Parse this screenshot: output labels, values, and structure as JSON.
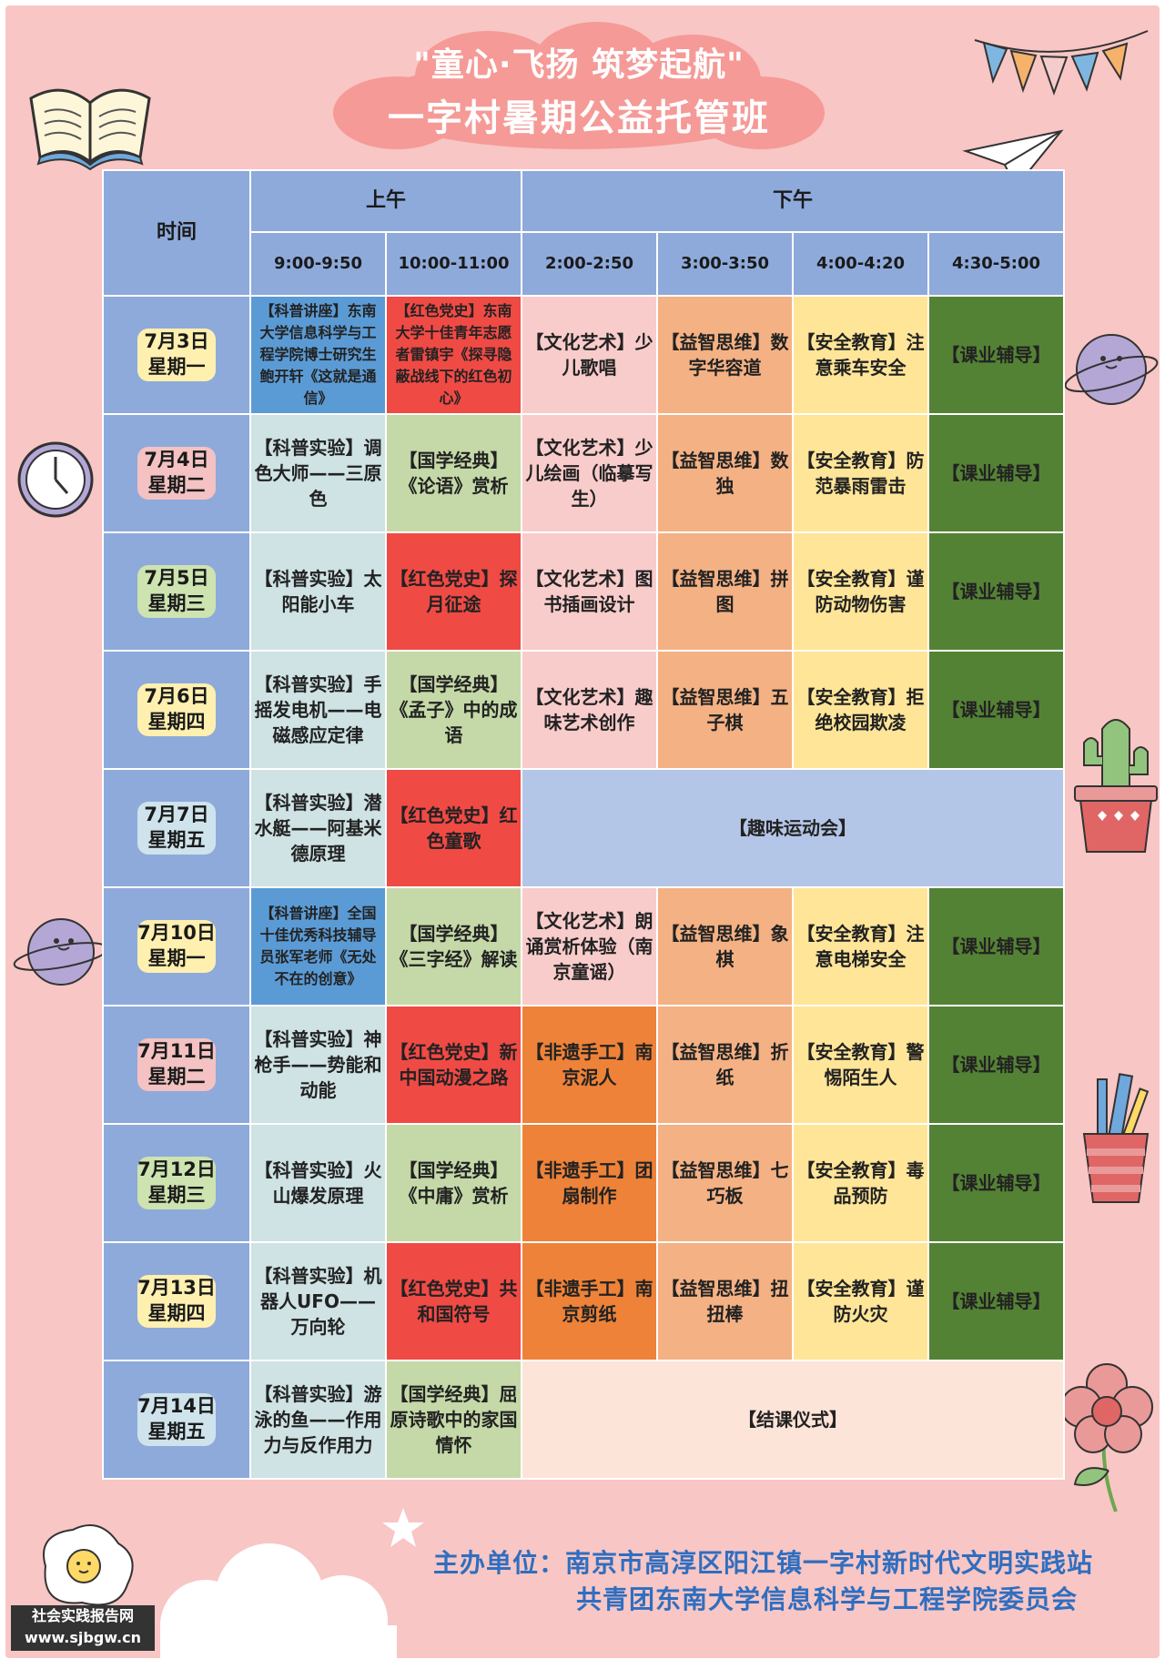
{
  "title": {
    "line1": "\"童心·飞扬 筑梦起航\"",
    "line2": "一字村暑期公益托管班"
  },
  "header": {
    "time_label": "时间",
    "morning": "上午",
    "afternoon": "下午",
    "slots": [
      "9:00-9:50",
      "10:00-11:00",
      "2:00-2:50",
      "3:00-3:50",
      "4:00-4:20",
      "4:30-5:00"
    ]
  },
  "days": [
    {
      "date": "7月3日",
      "weekday": "星期一",
      "s1": "【科普讲座】东南大学信息科学与工程学院博士研究生鲍开轩《这就是通信》",
      "s2": "【红色党史】东南大学十佳青年志愿者雷镇宇《探寻隐蔽战线下的红色初心》",
      "s3": "【文化艺术】少儿歌唱",
      "s4": "【益智思维】数字华容道",
      "s5": "【安全教育】注意乘车安全",
      "s6": "【课业辅导】"
    },
    {
      "date": "7月4日",
      "weekday": "星期二",
      "s1": "【科普实验】调色大师——三原色",
      "s2": "【国学经典】《论语》赏析",
      "s3": "【文化艺术】少儿绘画（临摹写生）",
      "s4": "【益智思维】数独",
      "s5": "【安全教育】防范暴雨雷击",
      "s6": "【课业辅导】"
    },
    {
      "date": "7月5日",
      "weekday": "星期三",
      "s1": "【科普实验】太阳能小车",
      "s2": "【红色党史】探月征途",
      "s3": "【文化艺术】图书插画设计",
      "s4": "【益智思维】拼图",
      "s5": "【安全教育】谨防动物伤害",
      "s6": "【课业辅导】"
    },
    {
      "date": "7月6日",
      "weekday": "星期四",
      "s1": "【科普实验】手摇发电机——电磁感应定律",
      "s2": "【国学经典】《孟子》中的成语",
      "s3": "【文化艺术】趣味艺术创作",
      "s4": "【益智思维】五子棋",
      "s5": "【安全教育】拒绝校园欺凌",
      "s6": "【课业辅导】"
    },
    {
      "date": "7月7日",
      "weekday": "星期五",
      "s1": "【科普实验】潜水艇——阿基米德原理",
      "s2": "【红色党史】红色童歌",
      "afternoon": "【趣味运动会】"
    },
    {
      "date": "7月10日",
      "weekday": "星期一",
      "s1": "【科普讲座】全国十佳优秀科技辅导员张军老师《无处不在的创意》",
      "s2": "【国学经典】《三字经》解读",
      "s3": "【文化艺术】朗诵赏析体验（南京童谣）",
      "s4": "【益智思维】象棋",
      "s5": "【安全教育】注意电梯安全",
      "s6": "【课业辅导】"
    },
    {
      "date": "7月11日",
      "weekday": "星期二",
      "s1": "【科普实验】神枪手——势能和动能",
      "s2": "【红色党史】新中国动漫之路",
      "s3": "【非遗手工】南京泥人",
      "s4": "【益智思维】折纸",
      "s5": "【安全教育】警惕陌生人",
      "s6": "【课业辅导】"
    },
    {
      "date": "7月12日",
      "weekday": "星期三",
      "s1": "【科普实验】火山爆发原理",
      "s2": "【国学经典】《中庸》赏析",
      "s3": "【非遗手工】团扇制作",
      "s4": "【益智思维】七巧板",
      "s5": "【安全教育】毒品预防",
      "s6": "【课业辅导】"
    },
    {
      "date": "7月13日",
      "weekday": "星期四",
      "s1": "【科普实验】机器人UFO——万向轮",
      "s2": "【红色党史】共和国符号",
      "s3": "【非遗手工】南京剪纸",
      "s4": "【益智思维】扭扭棒",
      "s5": "【安全教育】谨防火灾",
      "s6": "【课业辅导】"
    },
    {
      "date": "7月14日",
      "weekday": "星期五",
      "s1": "【科普实验】游泳的鱼——作用力与反作用力",
      "s2": "【国学经典】屈原诗歌中的家国情怀",
      "afternoon": "【结课仪式】"
    }
  ],
  "footer": {
    "organizer_label": "主办单位：",
    "organizer1": "南京市高淳区阳江镇一字村新时代文明实践站",
    "organizer2": "共青团东南大学信息科学与工程学院委员会"
  },
  "watermark": {
    "line1": "社会实践报告网",
    "line2": "www.sjbgw.cn"
  }
}
